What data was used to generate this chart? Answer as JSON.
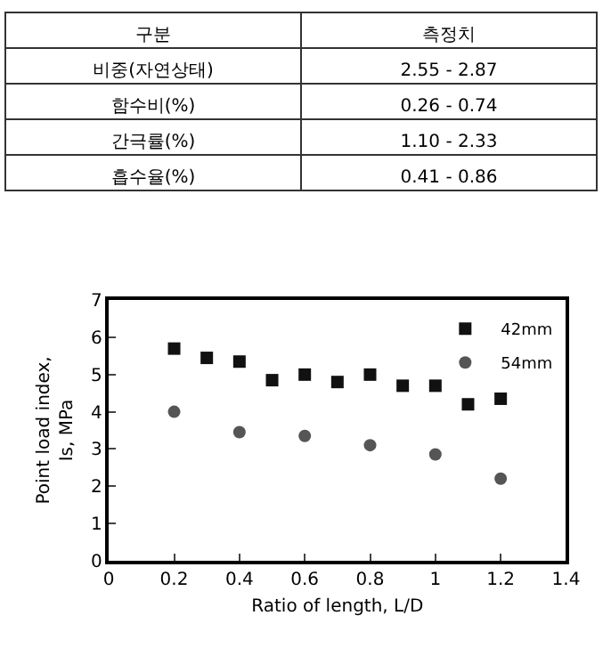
{
  "chart_data": [
    {
      "type": "other",
      "annotations": [
        "구분",
        "측정치",
        "비중(자연상태)",
        "2.55 - 2.87",
        "함수비(%)",
        "0.26 - 0.74",
        "간극률(%)",
        "1.10 - 2.33",
        "흡수율(%)",
        "0.41 - 0.86"
      ]
    },
    {
      "type": "scatter",
      "xlabel": "Ratio of length, L/D",
      "ylabel": "Point load index,\nIs, MPa",
      "xlim": [
        0,
        1.4
      ],
      "xticks": [
        0,
        0.2,
        0.4,
        0.6,
        0.8,
        1,
        1.2,
        1.4
      ],
      "ylim": [
        0,
        7
      ],
      "yticks": [
        0,
        1,
        2,
        3,
        4,
        5,
        6,
        7
      ],
      "legend": "top right",
      "series": [
        {
          "name": "42mm",
          "color": "#111111",
          "marker": "square",
          "x": [
            0.2,
            0.3,
            0.4,
            0.5,
            0.6,
            0.7,
            0.8,
            0.9,
            1.0,
            1.1,
            1.2
          ],
          "values": [
            5.7,
            5.45,
            5.35,
            4.85,
            5.0,
            4.8,
            5.0,
            4.7,
            4.7,
            4.2,
            4.35
          ]
        },
        {
          "name": "54mm",
          "color": "#555555",
          "marker": "circle",
          "x": [
            0.2,
            0.4,
            0.6,
            0.8,
            1.0,
            1.2
          ],
          "values": [
            4.0,
            3.45,
            3.35,
            3.1,
            2.85,
            2.2
          ]
        }
      ]
    }
  ]
}
